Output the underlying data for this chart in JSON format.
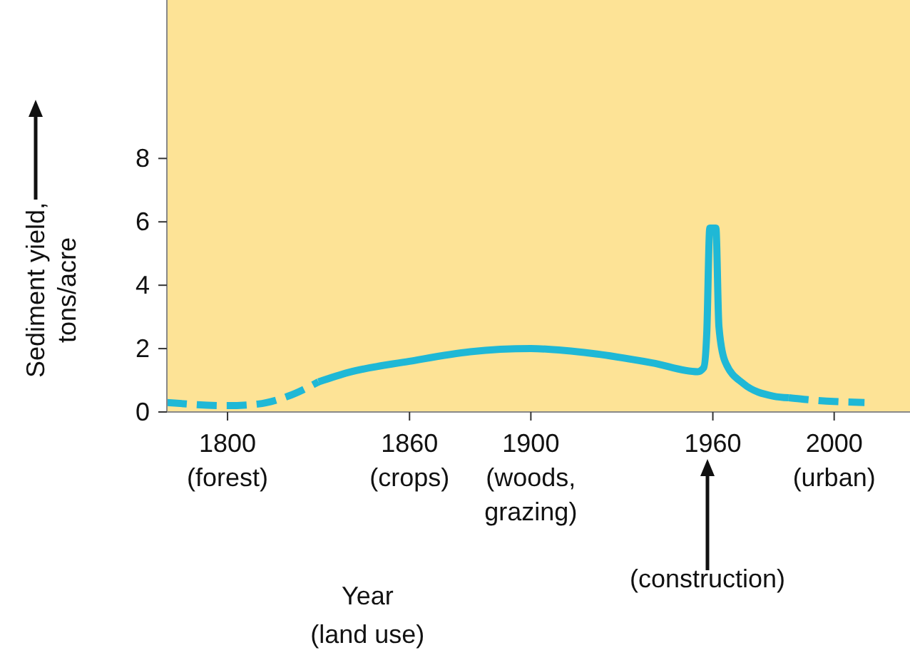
{
  "chart_data": {
    "type": "line",
    "xlabel": "Year\n(land use)",
    "ylabel": "Sediment yield,\ntons/acre",
    "xlim": [
      1780,
      2025
    ],
    "ylim": [
      0,
      13
    ],
    "xticks": [
      {
        "value": 1800,
        "label": "1800\n(forest)"
      },
      {
        "value": 1860,
        "label": "1860\n(crops)"
      },
      {
        "value": 1900,
        "label": "1900\n(woods,\ngrazing)"
      },
      {
        "value": 1960,
        "label": "1960"
      },
      {
        "value": 2000,
        "label": "2000\n(urban)"
      }
    ],
    "yticks": [
      0,
      2,
      4,
      6,
      8
    ],
    "grid": false,
    "marker": "none",
    "annotations": [
      "(construction)"
    ],
    "series": [
      {
        "color": "#1fb8d6",
        "line_style": "dashed",
        "x": [
          1780,
          1800,
          1810,
          1820,
          1830
        ],
        "values": [
          0.3,
          0.2,
          0.25,
          0.5,
          0.95
        ]
      },
      {
        "color": "#1fb8d6",
        "line_style": "solid",
        "x": [
          1830,
          1840,
          1860,
          1880,
          1900,
          1920,
          1940,
          1955,
          1957,
          1958,
          1959,
          1961,
          1962,
          1964,
          1970,
          1980,
          1985
        ],
        "values": [
          0.95,
          1.25,
          1.6,
          1.9,
          2.0,
          1.85,
          1.55,
          1.27,
          1.4,
          2.5,
          5.8,
          5.8,
          2.7,
          1.6,
          0.9,
          0.5,
          0.45
        ]
      },
      {
        "color": "#1fb8d6",
        "line_style": "dashed",
        "x": [
          1985,
          1990,
          2000,
          2010
        ],
        "values": [
          0.45,
          0.4,
          0.33,
          0.3
        ]
      }
    ]
  }
}
